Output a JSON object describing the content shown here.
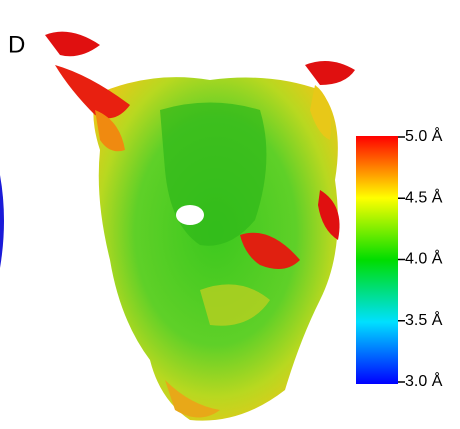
{
  "panel_label": "D",
  "colorbar": {
    "range": [
      3.0,
      5.0
    ],
    "ticks": [
      {
        "value": 5.0,
        "label": "5.0 Å"
      },
      {
        "value": 4.5,
        "label": "4.5 Å"
      },
      {
        "value": 4.0,
        "label": "4.0 Å"
      },
      {
        "value": 3.5,
        "label": "3.5 Å"
      },
      {
        "value": 3.0,
        "label": "3.0 Å"
      }
    ],
    "stops": [
      {
        "value": 3.0,
        "color": "#0000ff"
      },
      {
        "value": 3.5,
        "color": "#00e0ff"
      },
      {
        "value": 4.0,
        "color": "#00dd00"
      },
      {
        "value": 4.5,
        "color": "#ffff00"
      },
      {
        "value": 5.0,
        "color": "#ff0000"
      }
    ]
  }
}
